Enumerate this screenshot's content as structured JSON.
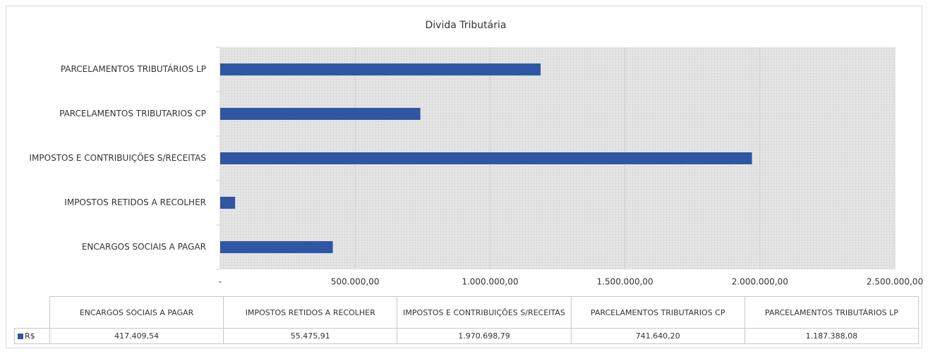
{
  "chart_data": {
    "type": "bar",
    "orientation": "horizontal",
    "title": "Divida Tributária",
    "categories": [
      "ENCARGOS SOCIAIS A PAGAR",
      "IMPOSTOS RETIDOS A RECOLHER",
      "IMPOSTOS E CONTRIBUIÇÕES S/RECEITAS",
      "PARCELAMENTOS TRIBUTARIOS CP",
      "PARCELAMENTOS TRIBUTÁRIOS LP"
    ],
    "series": [
      {
        "name": "R$",
        "color": "#2f56a3",
        "values": [
          417409.54,
          55475.91,
          1970698.79,
          741640.2,
          1187388.08
        ],
        "value_labels": [
          "417.409,54",
          "55.475,91",
          "1.970.698,79",
          "741.640,20",
          "1.187.388,08"
        ]
      }
    ],
    "xlim": [
      0,
      2500000
    ],
    "xticks": [
      {
        "value": 0,
        "label": "-"
      },
      {
        "value": 500000,
        "label": "500.000,00"
      },
      {
        "value": 1000000,
        "label": "1.000.000,00"
      },
      {
        "value": 1500000,
        "label": "1.500.000,00"
      },
      {
        "value": 2000000,
        "label": "2.000.000,00"
      },
      {
        "value": 2500000,
        "label": "2.500.000,00"
      }
    ],
    "grid": true,
    "data_table": true
  }
}
